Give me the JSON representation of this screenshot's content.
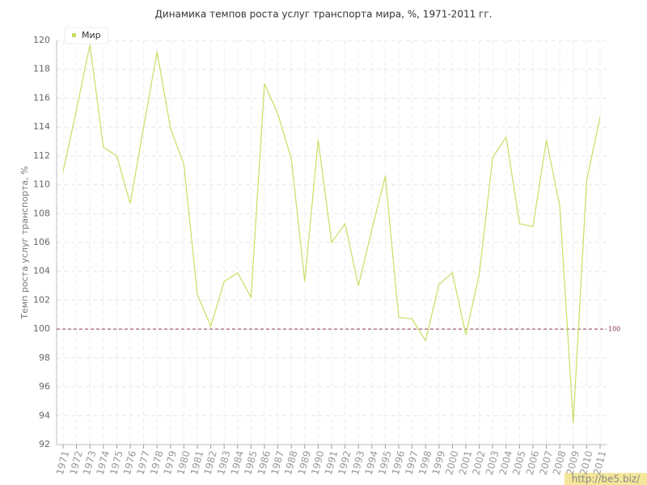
{
  "chart_data": {
    "type": "line",
    "title": "Динамика темпов роста услуг транспорта мира, %, 1971-2011 гг.",
    "y_label": "Темп роста услуг транспорта, %",
    "categories": [
      "1971",
      "1972",
      "1973",
      "1974",
      "1975",
      "1976",
      "1977",
      "1978",
      "1979",
      "1980",
      "1981",
      "1982",
      "1983",
      "1984",
      "1985",
      "1986",
      "1987",
      "1988",
      "1989",
      "1990",
      "1991",
      "1992",
      "1993",
      "1994",
      "1995",
      "1996",
      "1997",
      "1998",
      "1999",
      "2000",
      "2001",
      "2002",
      "2003",
      "2004",
      "2005",
      "2006",
      "2007",
      "2008",
      "2009",
      "2010",
      "2011"
    ],
    "series": [
      {
        "name": "Мир",
        "color": "#c5e063",
        "values": [
          110.9,
          115.2,
          119.7,
          112.6,
          112.0,
          108.7,
          114.0,
          119.2,
          113.9,
          111.4,
          102.4,
          100.2,
          103.3,
          103.9,
          102.2,
          117.0,
          114.9,
          111.8,
          103.3,
          113.1,
          106.0,
          107.3,
          103.0,
          106.9,
          110.6,
          100.8,
          100.7,
          99.2,
          103.1,
          103.9,
          99.6,
          103.8,
          111.9,
          113.3,
          107.3,
          107.1,
          113.1,
          108.5,
          93.5,
          110.3,
          114.7
        ]
      }
    ],
    "ylim": [
      92,
      120
    ],
    "yticks": [
      92,
      94,
      96,
      98,
      100,
      102,
      104,
      106,
      108,
      110,
      112,
      114,
      116,
      118,
      120
    ],
    "reference_line": 100,
    "reference_color": "#8b3a4a",
    "grid": true,
    "legend": "top-left",
    "watermark": "http://be5.biz/"
  }
}
